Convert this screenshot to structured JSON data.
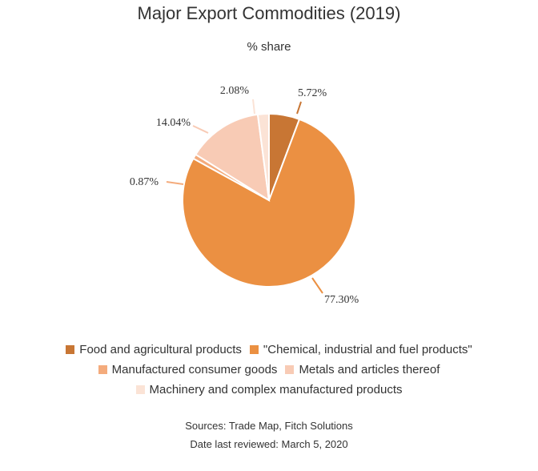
{
  "chart_data": {
    "type": "pie",
    "title": "Major Export Commodities (2019)",
    "subtitle": "% share",
    "slices": [
      {
        "name": "Food and agricultural products",
        "value": 5.72,
        "label": "5.72%",
        "color": "#c87634"
      },
      {
        "name": "\"Chemical, industrial and fuel products\"",
        "value": 77.3,
        "label": "77.30%",
        "color": "#eb9042"
      },
      {
        "name": "Manufactured consumer goods",
        "value": 0.87,
        "label": "0.87%",
        "color": "#f4ab7c"
      },
      {
        "name": "Metals and articles thereof",
        "value": 14.04,
        "label": "14.04%",
        "color": "#f8cbb5"
      },
      {
        "name": "Machinery and complex manufactured products",
        "value": 2.08,
        "label": "2.08%",
        "color": "#fbe3d6"
      }
    ],
    "legend_position": "bottom"
  },
  "legend_rows": [
    [
      0,
      1
    ],
    [
      2,
      3
    ],
    [
      4
    ]
  ],
  "footer": {
    "sources": "Sources: Trade Map, Fitch Solutions",
    "reviewed": "Date last reviewed: March 5, 2020"
  }
}
